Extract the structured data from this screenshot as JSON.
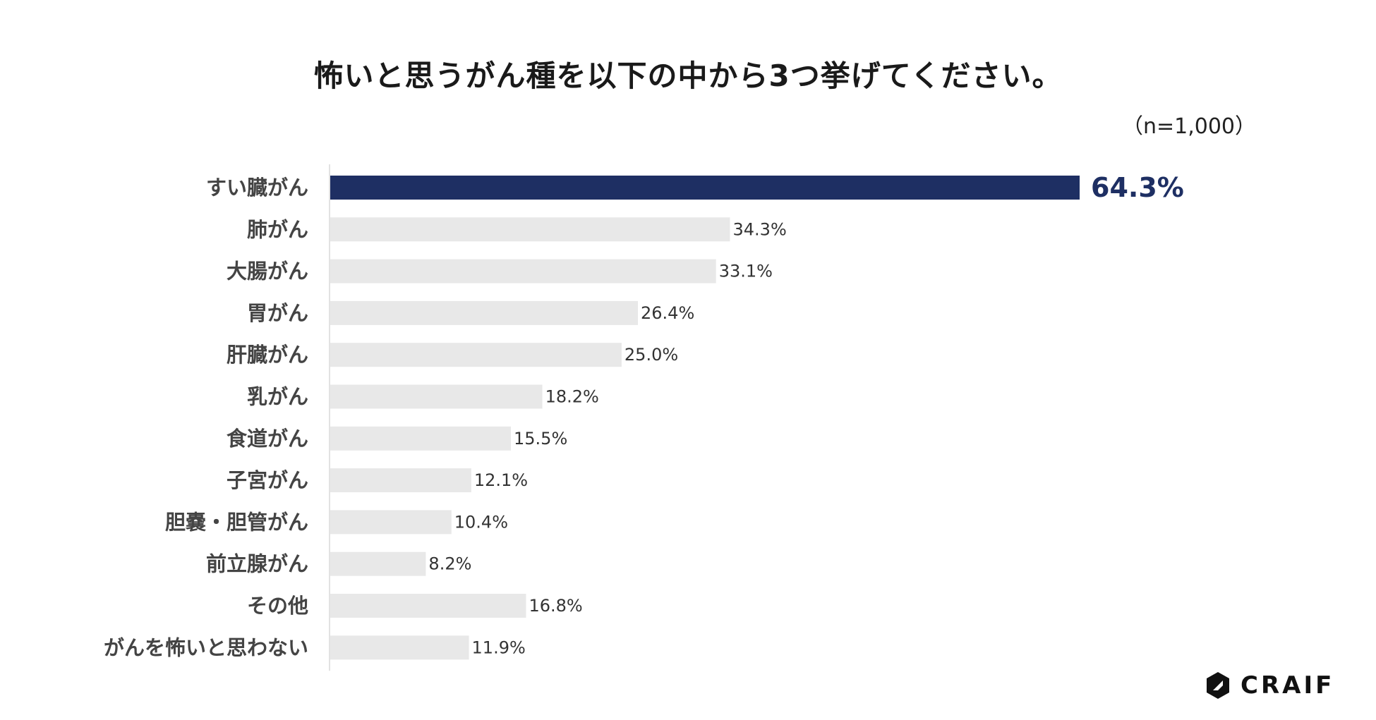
{
  "title": "怖いと思うがん種を以下の中から3つ挙げてください。",
  "sample_size": "（n=1,000）",
  "brand": "CRAIF",
  "chart_data": {
    "type": "bar",
    "orientation": "horizontal",
    "title": "怖いと思うがん種を以下の中から3つ挙げてください。",
    "categories": [
      "すい臓がん",
      "肺がん",
      "大腸がん",
      "胃がん",
      "肝臓がん",
      "乳がん",
      "食道がん",
      "子宮がん",
      "胆嚢・胆管がん",
      "前立腺がん",
      "その他",
      "がんを怖いと思わない"
    ],
    "values": [
      64.3,
      34.3,
      33.1,
      26.4,
      25.0,
      18.2,
      15.5,
      12.1,
      10.4,
      8.2,
      16.8,
      11.9
    ],
    "labels": [
      "64.3%",
      "34.3%",
      "33.1%",
      "26.4%",
      "25.0%",
      "18.2%",
      "15.5%",
      "12.1%",
      "10.4%",
      "8.2%",
      "16.8%",
      "11.9%"
    ],
    "unit": "%",
    "xlim": [
      0,
      64.3
    ],
    "highlight_index": 0,
    "colors": {
      "highlight": "#1e2f63",
      "bar": "#e8e8e8",
      "axis": "#d9d9d9",
      "category_text": "#444444",
      "value_text": "#333333"
    }
  }
}
